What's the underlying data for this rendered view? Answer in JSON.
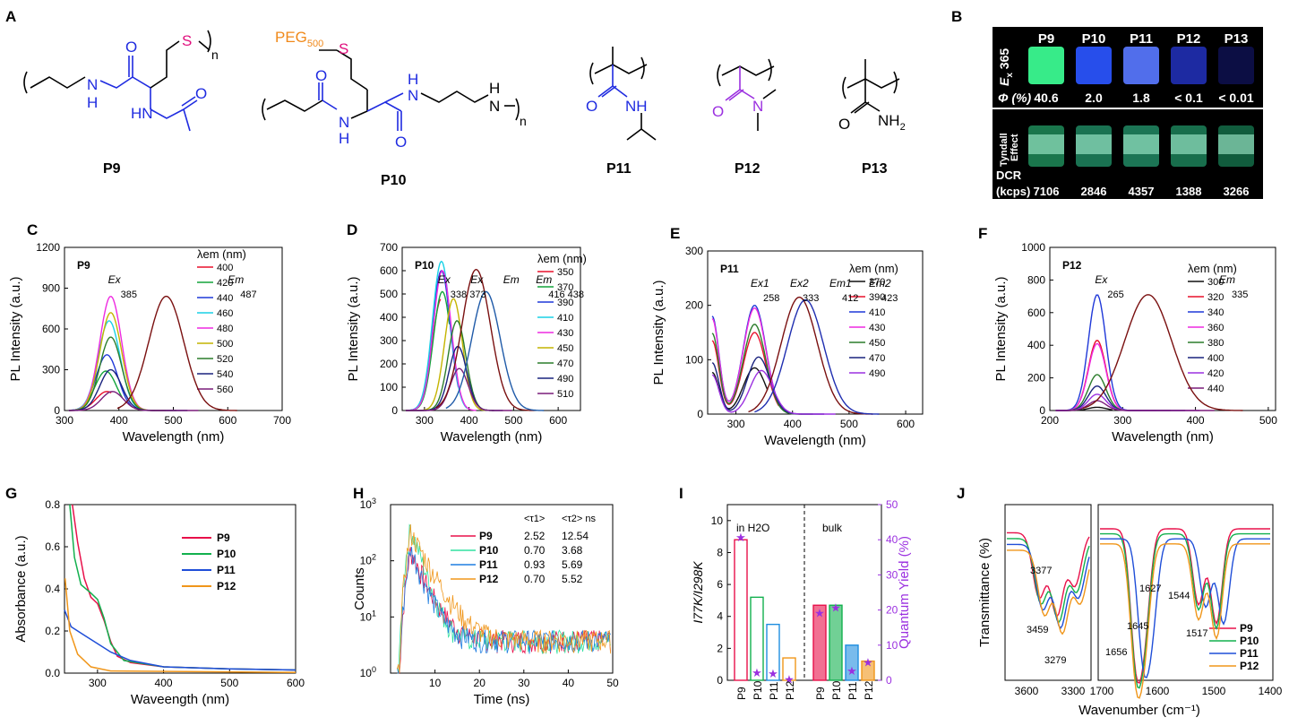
{
  "panels": {
    "A": {
      "letter": "A",
      "molecules": [
        {
          "name": "P9",
          "texts": [
            "S",
            "O",
            "N",
            "H",
            "HN",
            "O",
            "n"
          ]
        },
        {
          "name": "P10",
          "texts": [
            "PEG",
            "500",
            "S",
            "O",
            "N",
            "H",
            "O",
            "N",
            "H",
            "N",
            "H",
            "n"
          ]
        },
        {
          "name": "P11",
          "texts": [
            "O",
            "NH"
          ]
        },
        {
          "name": "P12",
          "texts": [
            "O",
            "N"
          ]
        },
        {
          "name": "P13",
          "texts": [
            "O",
            "NH",
            "2"
          ]
        }
      ]
    },
    "B": {
      "letter": "B",
      "ex_label": "E",
      "ex_sub": "x",
      "ex_value": "365",
      "phi_label": "Φ (%)",
      "tyndall_lines": [
        "Tyndall",
        "Effect"
      ],
      "dcr_label": "DCR",
      "dcr_unit": "(kcps)",
      "samples": [
        "P9",
        "P10",
        "P11",
        "P12",
        "P13"
      ],
      "phi": [
        "40.6",
        "2.0",
        "1.8",
        "< 0.1",
        "< 0.01"
      ],
      "dcr": [
        "7106",
        "2846",
        "4357",
        "1388",
        "3266"
      ],
      "colors": {
        "top": [
          "#3cff95",
          "#2a55ff",
          "#5877ff",
          "#1f2eb0",
          "#0d0f4a"
        ],
        "bottom": [
          "#2fd78a",
          "#2fcf95",
          "#33d69a",
          "#2cc88a",
          "#1fa870"
        ]
      }
    }
  },
  "chart_data": [
    {
      "id": "C",
      "letter": "C",
      "type": "line",
      "tag": "P9",
      "xlabel": "Wavelength (nm)",
      "ylabel": "PL Intensity (a.u.)",
      "xlim": [
        300,
        700
      ],
      "ylim": [
        0,
        1200
      ],
      "xticks": [
        "300",
        "400",
        "500",
        "600",
        "700"
      ],
      "yticks": [
        "0",
        "300",
        "600",
        "900",
        "1200"
      ],
      "legend_title": "λem (nm)",
      "annotations": [
        {
          "text": "Ex",
          "note": "385"
        },
        {
          "text": "Em",
          "note": "487"
        }
      ],
      "series": [
        {
          "name": "400",
          "color": "#e8102c",
          "center": 378,
          "amp": 140
        },
        {
          "name": "420",
          "color": "#12a43a",
          "center": 376,
          "amp": 290
        },
        {
          "name": "440",
          "color": "#1f38d8",
          "center": 378,
          "amp": 410
        },
        {
          "name": "460",
          "color": "#19d1e6",
          "center": 382,
          "amp": 660
        },
        {
          "name": "480",
          "color": "#ee2ae0",
          "center": 385,
          "amp": 840
        },
        {
          "name": "500",
          "color": "#c4b400",
          "center": 385,
          "amp": 720
        },
        {
          "name": "520",
          "color": "#2c7d2c",
          "center": 385,
          "amp": 540
        },
        {
          "name": "540",
          "color": "#1a237e",
          "center": 385,
          "amp": 300
        },
        {
          "name": "560",
          "color": "#7a1d7a",
          "center": 388,
          "amp": 140
        },
        {
          "name": "Em",
          "color": "#7a1010",
          "center": 487,
          "amp": 840
        }
      ]
    },
    {
      "id": "D",
      "letter": "D",
      "type": "line",
      "tag": "P10",
      "xlabel": "Wavelength (nm)",
      "ylabel": "PL Intensity (a.u.)",
      "xlim": [
        250,
        650
      ],
      "ylim": [
        0,
        700
      ],
      "xticks": [
        "300",
        "400",
        "500",
        "600"
      ],
      "yticks": [
        "0",
        "100",
        "200",
        "300",
        "400",
        "500",
        "600",
        "700"
      ],
      "legend_title": "λem (nm)",
      "annotations": [
        {
          "text": "Ex",
          "note": "338 373"
        },
        {
          "text": "Ex",
          "note": ""
        },
        {
          "text": "Em",
          "note": ""
        },
        {
          "text": "Em",
          "note": "416 438"
        }
      ],
      "series": [
        {
          "name": "350",
          "color": "#e8102c",
          "center": 338,
          "amp": 480
        },
        {
          "name": "370",
          "color": "#12a43a",
          "center": 340,
          "amp": 510
        },
        {
          "name": "390",
          "color": "#1f38d8",
          "center": 338,
          "amp": 600
        },
        {
          "name": "410",
          "color": "#19d1e6",
          "center": 338,
          "amp": 640
        },
        {
          "name": "430",
          "color": "#ee2ae0",
          "center": 340,
          "amp": 600
        },
        {
          "name": "450",
          "color": "#c4b400",
          "center": 365,
          "amp": 480
        },
        {
          "name": "470",
          "color": "#2c7d2c",
          "center": 373,
          "amp": 385
        },
        {
          "name": "490",
          "color": "#1a237e",
          "center": 375,
          "amp": 275
        },
        {
          "name": "510",
          "color": "#7a1d7a",
          "center": 378,
          "amp": 180
        },
        {
          "name": "Em1",
          "color": "#7a1010",
          "center": 416,
          "amp": 605
        },
        {
          "name": "Em2",
          "color": "#1f5aa8",
          "center": 438,
          "amp": 510
        }
      ]
    },
    {
      "id": "E",
      "letter": "E",
      "type": "line",
      "tag": "P11",
      "xlabel": "Wavelength (nm)",
      "ylabel": "PL Intensity (a.u.)",
      "xlim": [
        250,
        630
      ],
      "ylim": [
        0,
        300
      ],
      "xticks": [
        "300",
        "400",
        "500",
        "600"
      ],
      "yticks": [
        "0",
        "100",
        "200",
        "300"
      ],
      "legend_title": "λem (nm)",
      "annotations": [
        {
          "text": "Ex1",
          "note": "258"
        },
        {
          "text": "Ex2",
          "note": "333"
        },
        {
          "text": "Em1",
          "note": "412"
        },
        {
          "text": "Em2",
          "note": "423"
        }
      ],
      "series": [
        {
          "name": "370",
          "color": "#111111",
          "center": 333,
          "amp": 85
        },
        {
          "name": "390",
          "color": "#e8102c",
          "center": 333,
          "amp": 150
        },
        {
          "name": "410",
          "color": "#1f38d8",
          "center": 333,
          "amp": 200
        },
        {
          "name": "430",
          "color": "#ee2ae0",
          "center": 333,
          "amp": 195
        },
        {
          "name": "450",
          "color": "#2c7d2c",
          "center": 333,
          "amp": 165
        },
        {
          "name": "470",
          "color": "#1a237e",
          "center": 340,
          "amp": 105
        },
        {
          "name": "490",
          "color": "#9b30e0",
          "center": 345,
          "amp": 80
        },
        {
          "name": "Em1",
          "color": "#7a1010",
          "center": 412,
          "amp": 215
        },
        {
          "name": "Em2",
          "color": "#1f2eb0",
          "center": 423,
          "amp": 210
        }
      ]
    },
    {
      "id": "F",
      "letter": "F",
      "type": "line",
      "tag": "P12",
      "xlabel": "Wavelength (nm)",
      "ylabel": "PL Intensity (a.u.)",
      "xlim": [
        200,
        510
      ],
      "ylim": [
        0,
        1000
      ],
      "xticks": [
        "200",
        "300",
        "400",
        "500"
      ],
      "yticks": [
        "0",
        "200",
        "400",
        "600",
        "800",
        "1000"
      ],
      "legend_title": "λem (nm)",
      "annotations": [
        {
          "text": "Ex",
          "note": "265"
        },
        {
          "text": "Em",
          "note": "335"
        }
      ],
      "series": [
        {
          "name": "300",
          "color": "#111111",
          "center": 265,
          "amp": 20
        },
        {
          "name": "320",
          "color": "#e8102c",
          "center": 265,
          "amp": 430
        },
        {
          "name": "340",
          "color": "#1f38d8",
          "center": 265,
          "amp": 710
        },
        {
          "name": "360",
          "color": "#ee2ae0",
          "center": 265,
          "amp": 410
        },
        {
          "name": "380",
          "color": "#2c7d2c",
          "center": 265,
          "amp": 220
        },
        {
          "name": "400",
          "color": "#1a237e",
          "center": 265,
          "amp": 150
        },
        {
          "name": "420",
          "color": "#9b30e0",
          "center": 265,
          "amp": 100
        },
        {
          "name": "440",
          "color": "#7a1d7a",
          "center": 265,
          "amp": 60
        },
        {
          "name": "Em",
          "color": "#7a1010",
          "center": 335,
          "amp": 710
        }
      ]
    },
    {
      "id": "G",
      "letter": "G",
      "type": "line",
      "xlabel": "Waveength (nm)",
      "ylabel": "Absorbance (a.u.)",
      "xlim": [
        250,
        600
      ],
      "ylim": [
        0,
        0.8
      ],
      "xticks": [
        "300",
        "400",
        "500",
        "600"
      ],
      "yticks": [
        "0.0",
        "0.2",
        "0.4",
        "0.6",
        "0.8"
      ],
      "series": [
        {
          "name": "P9",
          "color": "#e8104a",
          "points": [
            [
              262,
              0.8
            ],
            [
              270,
              0.62
            ],
            [
              280,
              0.45
            ],
            [
              290,
              0.36
            ],
            [
              300,
              0.33
            ],
            [
              310,
              0.25
            ],
            [
              320,
              0.15
            ],
            [
              330,
              0.08
            ],
            [
              350,
              0.05
            ],
            [
              400,
              0.03
            ],
            [
              500,
              0.02
            ],
            [
              600,
              0.015
            ]
          ]
        },
        {
          "name": "P10",
          "color": "#12b04e",
          "points": [
            [
              258,
              0.8
            ],
            [
              265,
              0.55
            ],
            [
              275,
              0.42
            ],
            [
              290,
              0.38
            ],
            [
              300,
              0.35
            ],
            [
              310,
              0.26
            ],
            [
              320,
              0.14
            ],
            [
              340,
              0.06
            ],
            [
              400,
              0.03
            ],
            [
              500,
              0.02
            ],
            [
              600,
              0.015
            ]
          ]
        },
        {
          "name": "P11",
          "color": "#1f4ed8",
          "points": [
            [
              250,
              0.3
            ],
            [
              260,
              0.22
            ],
            [
              280,
              0.18
            ],
            [
              300,
              0.14
            ],
            [
              320,
              0.1
            ],
            [
              350,
              0.06
            ],
            [
              400,
              0.03
            ],
            [
              500,
              0.02
            ],
            [
              600,
              0.015
            ]
          ]
        },
        {
          "name": "P12",
          "color": "#f0961a",
          "points": [
            [
              251,
              0.45
            ],
            [
              258,
              0.2
            ],
            [
              270,
              0.09
            ],
            [
              290,
              0.03
            ],
            [
              320,
              0.01
            ],
            [
              600,
              0.003
            ]
          ]
        }
      ]
    },
    {
      "id": "H",
      "letter": "H",
      "type": "line",
      "xlabel": "Time (ns)",
      "ylabel": "Counts",
      "yscale": "log",
      "xlim": [
        0,
        50
      ],
      "ylim": [
        1,
        1000
      ],
      "xticks": [
        "10",
        "20",
        "30",
        "40",
        "50"
      ],
      "ytick_base": "10",
      "ytick_exps": [
        "0",
        "1",
        "2",
        "3"
      ],
      "table_headers": [
        "<τ1>",
        "<τ2> ns"
      ],
      "series": [
        {
          "name": "P9",
          "color": "#e8104a",
          "tau1": "2.52",
          "tau2": "12.54",
          "peak": 150
        },
        {
          "name": "P10",
          "color": "#30e0a0",
          "tau1": "0.70",
          "tau2": "3.68",
          "peak": 400
        },
        {
          "name": "P11",
          "color": "#1f7ee0",
          "tau1": "0.93",
          "tau2": "5.69",
          "peak": 160
        },
        {
          "name": "P12",
          "color": "#f0961a",
          "tau1": "0.70",
          "tau2": "5.52",
          "peak": 320
        }
      ]
    },
    {
      "id": "I",
      "letter": "I",
      "type": "bar",
      "ylabel_left": "I77K/I298K",
      "ylabel_right": "Quantum Yield (%)",
      "ylim": [
        0,
        11
      ],
      "yticks": [
        "0",
        "2",
        "4",
        "6",
        "8",
        "10"
      ],
      "y2lim": [
        0,
        50
      ],
      "y2ticks": [
        "0",
        "10",
        "20",
        "30",
        "40",
        "50"
      ],
      "groups": [
        {
          "label": "in H2O",
          "categories": [
            "P9",
            "P10",
            "P11",
            "P12"
          ],
          "values": [
            8.8,
            5.2,
            3.5,
            1.4
          ],
          "qy": [
            40.6,
            2.0,
            1.8,
            0.1
          ],
          "filled": false
        },
        {
          "label": "bulk",
          "categories": [
            "P9",
            "P10",
            "P11",
            "P12"
          ],
          "values": [
            4.7,
            4.7,
            2.2,
            1.2
          ],
          "qy": [
            19,
            20.5,
            2.5,
            5
          ],
          "filled": true
        }
      ],
      "colors": [
        "#e8104a",
        "#12b04e",
        "#1f8ee0",
        "#f0961a"
      ],
      "qy_color": "#9b30e0"
    },
    {
      "id": "J",
      "letter": "J",
      "type": "line",
      "xlabel": "Wavenumber (cm⁻¹)",
      "ylabel": "Transmittance (%)",
      "xticks_left": [
        "3600",
        "3300"
      ],
      "xticks_right": [
        "1700",
        "1600",
        "1500",
        "1400"
      ],
      "annotations": [
        "3377",
        "3459",
        "3279",
        "1656",
        "1645",
        "1627",
        "1544",
        "1517"
      ],
      "series": [
        {
          "name": "P9",
          "color": "#e8104a"
        },
        {
          "name": "P10",
          "color": "#12b04e"
        },
        {
          "name": "P11",
          "color": "#1f4ed8"
        },
        {
          "name": "P12",
          "color": "#f0961a"
        }
      ]
    }
  ]
}
